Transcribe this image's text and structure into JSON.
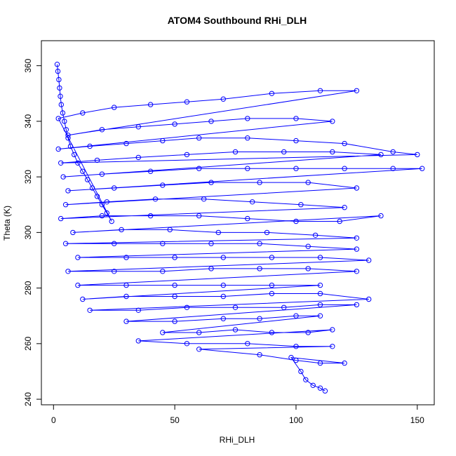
{
  "chart_data": {
    "type": "scatter",
    "title": "ATOM4 Southbound RHi_DLH",
    "xlabel": "RHi_DLH",
    "ylabel": "Theta (K)",
    "xlim": [
      -5,
      157
    ],
    "ylim": [
      238,
      369
    ],
    "x_ticks": [
      0,
      50,
      100,
      150
    ],
    "y_ticks": [
      240,
      260,
      280,
      300,
      320,
      340,
      360
    ],
    "grid": false,
    "legend": "none",
    "marker": "open-circle",
    "connect_points": true,
    "color": "#0000ff",
    "series": [
      {
        "points": [
          [
            1.5,
            360.5
          ],
          [
            1.8,
            358
          ],
          [
            2.2,
            355
          ],
          [
            2.5,
            352
          ],
          [
            2.8,
            349
          ],
          [
            3.2,
            346
          ],
          [
            3.8,
            343
          ],
          [
            4.5,
            340
          ],
          [
            5.2,
            337
          ],
          [
            6,
            334
          ],
          [
            7,
            331
          ],
          [
            8.5,
            328
          ],
          [
            10,
            325
          ],
          [
            12,
            322
          ],
          [
            14,
            319
          ],
          [
            16,
            316
          ],
          [
            18,
            313
          ],
          [
            20,
            310
          ],
          [
            22,
            307
          ],
          [
            24,
            304
          ],
          [
            2,
            341
          ],
          [
            12,
            343
          ],
          [
            25,
            345
          ],
          [
            40,
            346
          ],
          [
            55,
            347
          ],
          [
            70,
            348
          ],
          [
            90,
            350
          ],
          [
            110,
            351
          ],
          [
            125,
            351
          ],
          [
            6,
            335
          ],
          [
            20,
            337
          ],
          [
            35,
            338
          ],
          [
            50,
            339
          ],
          [
            65,
            340
          ],
          [
            80,
            341
          ],
          [
            100,
            341
          ],
          [
            115,
            340
          ],
          [
            2,
            330
          ],
          [
            15,
            331
          ],
          [
            30,
            332
          ],
          [
            45,
            333
          ],
          [
            60,
            334
          ],
          [
            80,
            334
          ],
          [
            100,
            333
          ],
          [
            120,
            332
          ],
          [
            140,
            329
          ],
          [
            150,
            328
          ],
          [
            3,
            325
          ],
          [
            18,
            326
          ],
          [
            35,
            327
          ],
          [
            55,
            328
          ],
          [
            75,
            329
          ],
          [
            95,
            329
          ],
          [
            115,
            329
          ],
          [
            135,
            328
          ],
          [
            4,
            320
          ],
          [
            20,
            321
          ],
          [
            40,
            322
          ],
          [
            60,
            323
          ],
          [
            80,
            323
          ],
          [
            100,
            323
          ],
          [
            120,
            323
          ],
          [
            140,
            323
          ],
          [
            152,
            323
          ],
          [
            6,
            315
          ],
          [
            25,
            316
          ],
          [
            45,
            317
          ],
          [
            65,
            318
          ],
          [
            85,
            318
          ],
          [
            105,
            318
          ],
          [
            125,
            316
          ],
          [
            5,
            310
          ],
          [
            22,
            311
          ],
          [
            42,
            312
          ],
          [
            62,
            312
          ],
          [
            82,
            311
          ],
          [
            102,
            310
          ],
          [
            120,
            309
          ],
          [
            3,
            305
          ],
          [
            20,
            306
          ],
          [
            40,
            306
          ],
          [
            60,
            306
          ],
          [
            80,
            305
          ],
          [
            100,
            304
          ],
          [
            118,
            304
          ],
          [
            135,
            306
          ],
          [
            8,
            300
          ],
          [
            28,
            301
          ],
          [
            48,
            301
          ],
          [
            68,
            300
          ],
          [
            88,
            300
          ],
          [
            108,
            299
          ],
          [
            125,
            298
          ],
          [
            5,
            296
          ],
          [
            25,
            296
          ],
          [
            45,
            296
          ],
          [
            65,
            296
          ],
          [
            85,
            296
          ],
          [
            105,
            295
          ],
          [
            125,
            294
          ],
          [
            10,
            291
          ],
          [
            30,
            291
          ],
          [
            50,
            291
          ],
          [
            70,
            291
          ],
          [
            90,
            291
          ],
          [
            110,
            291
          ],
          [
            130,
            290
          ],
          [
            6,
            286
          ],
          [
            25,
            286
          ],
          [
            45,
            286
          ],
          [
            65,
            287
          ],
          [
            85,
            287
          ],
          [
            105,
            287
          ],
          [
            125,
            286
          ],
          [
            10,
            281
          ],
          [
            30,
            281
          ],
          [
            50,
            281
          ],
          [
            70,
            281
          ],
          [
            90,
            281
          ],
          [
            110,
            281
          ],
          [
            12,
            276
          ],
          [
            30,
            277
          ],
          [
            50,
            277
          ],
          [
            70,
            277
          ],
          [
            90,
            278
          ],
          [
            110,
            278
          ],
          [
            130,
            276
          ],
          [
            15,
            272
          ],
          [
            35,
            272
          ],
          [
            55,
            273
          ],
          [
            75,
            273
          ],
          [
            95,
            273
          ],
          [
            110,
            274
          ],
          [
            125,
            274
          ],
          [
            30,
            268
          ],
          [
            50,
            268
          ],
          [
            70,
            269
          ],
          [
            85,
            269
          ],
          [
            100,
            270
          ],
          [
            110,
            270
          ],
          [
            45,
            264
          ],
          [
            60,
            264
          ],
          [
            75,
            265
          ],
          [
            90,
            264
          ],
          [
            105,
            264
          ],
          [
            115,
            265
          ],
          [
            35,
            261
          ],
          [
            55,
            260
          ],
          [
            80,
            260
          ],
          [
            100,
            259
          ],
          [
            115,
            259
          ],
          [
            60,
            258
          ],
          [
            85,
            256
          ],
          [
            100,
            254
          ],
          [
            110,
            253
          ],
          [
            120,
            253
          ],
          [
            98,
            255
          ],
          [
            102,
            250
          ],
          [
            104,
            247
          ],
          [
            107,
            245
          ],
          [
            110,
            244
          ],
          [
            112,
            243
          ]
        ]
      }
    ]
  }
}
